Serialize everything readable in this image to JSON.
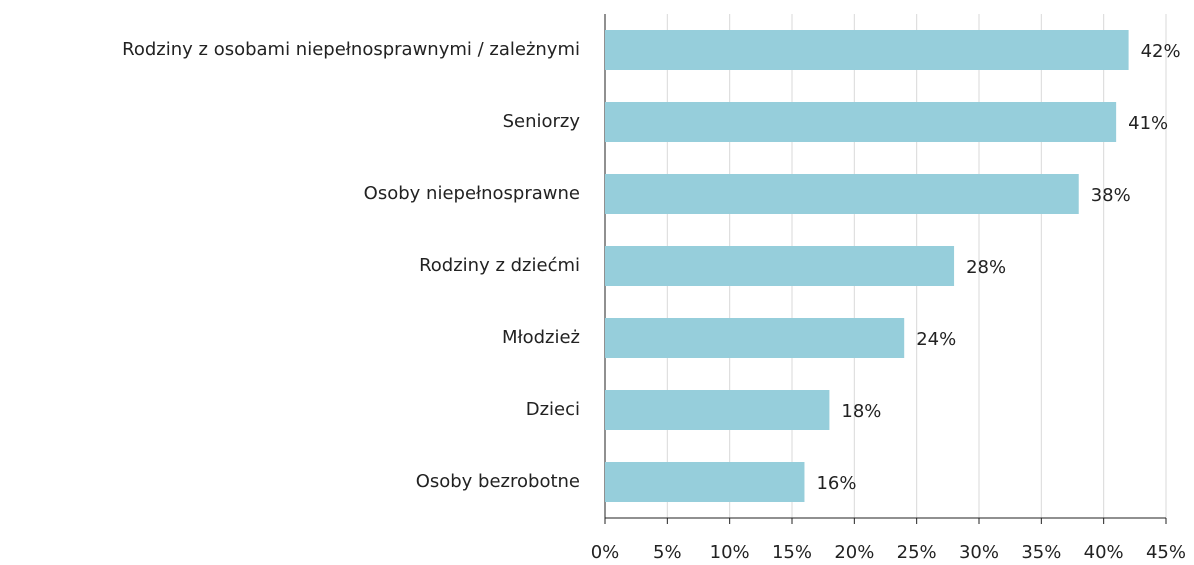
{
  "chart_data": {
    "type": "bar",
    "orientation": "horizontal",
    "categories": [
      "Rodziny z osobami niepełnosprawnymi / zależnymi",
      "Seniorzy",
      "Osoby niepełnosprawne",
      "Rodziny z dziećmi",
      "Młodzież",
      "Dzieci",
      "Osoby bezrobotne"
    ],
    "values": [
      42,
      41,
      38,
      28,
      24,
      18,
      16
    ],
    "value_labels": [
      "42%",
      "41%",
      "38%",
      "28%",
      "24%",
      "18%",
      "16%"
    ],
    "color": "#96cedb",
    "xlim": [
      0,
      45
    ],
    "xticks": [
      {
        "value": 0,
        "label": "0%"
      },
      {
        "value": 5,
        "label": "5%"
      },
      {
        "value": 10,
        "label": "10%"
      },
      {
        "value": 15,
        "label": "15%"
      },
      {
        "value": 20,
        "label": "20%"
      },
      {
        "value": 25,
        "label": "25%"
      },
      {
        "value": 30,
        "label": "30%"
      },
      {
        "value": 35,
        "label": "35%"
      },
      {
        "value": 40,
        "label": "40%"
      },
      {
        "value": 45,
        "label": "45%"
      }
    ],
    "grid": true
  }
}
